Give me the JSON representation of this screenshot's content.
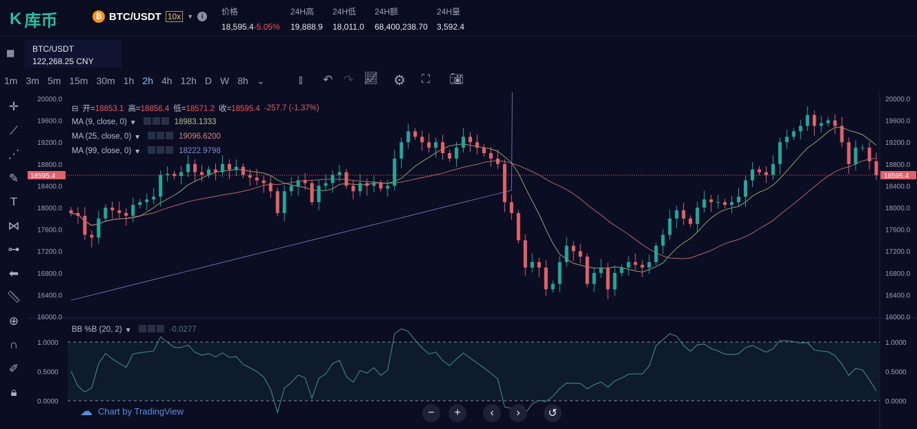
{
  "header": {
    "logo": "库币",
    "pair": "BTC/USDT",
    "leverage": "10x",
    "stats": [
      {
        "label": "价格",
        "value": "18,595.4",
        "change": "-5.05%"
      },
      {
        "label": "24H高",
        "value": "19,888.9"
      },
      {
        "label": "24H低",
        "value": "18,011.0"
      },
      {
        "label": "24H额",
        "value": "68,400,238.70"
      },
      {
        "label": "24H量",
        "value": "3,592.4"
      }
    ]
  },
  "symbol": {
    "name": "BTC/USDT",
    "cny": "122,268.25 CNY"
  },
  "timeframes": [
    "1m",
    "3m",
    "5m",
    "15m",
    "30m",
    "1h",
    "2h",
    "4h",
    "12h",
    "D",
    "W",
    "8h"
  ],
  "active_timeframe": "2h",
  "toolbar_icons": [
    "candles-icon",
    "undo-icon",
    "redo-icon",
    "indicator-icon",
    "settings-icon",
    "fullscreen-icon",
    "camera-icon"
  ],
  "left_tools": [
    "crosshair-icon",
    "trendline-icon",
    "fib-icon",
    "brush-icon",
    "text-icon",
    "pattern-icon",
    "measure-icon",
    "back-arrow-icon",
    "ruler-icon",
    "zoom-in-icon",
    "magnet-icon",
    "lock-draw-icon",
    "lock-icon"
  ],
  "legend": {
    "ohlc": {
      "o_label": "开=",
      "o": "18853.1",
      "h_label": "高=",
      "h": "18856.4",
      "l_label": "低=",
      "l": "18571.2",
      "c_label": "收=",
      "c": "18595.4",
      "chg": "-257.7 (-1.37%)"
    },
    "ma": [
      {
        "label": "MA (9, close, 0)",
        "value": "18983.1333",
        "color": "#b9c48a"
      },
      {
        "label": "MA (25, close, 0)",
        "value": "19096.6200",
        "color": "#d98080"
      },
      {
        "label": "MA (99, close, 0)",
        "value": "18222.9798",
        "color": "#8088d0"
      }
    ],
    "bb": {
      "label": "BB %B (20, 2)",
      "value": "-0.0277"
    }
  },
  "price_label": "18595.4",
  "colors": {
    "up": "#26a69a",
    "down": "#e0636b",
    "bg": "#0b0e23"
  },
  "chart_data": {
    "type": "candlestick",
    "ylim": [
      16000,
      20000
    ],
    "y_ticks": [
      "20000.0",
      "19600.0",
      "19200.0",
      "18800.0",
      "18400.0",
      "18000.0",
      "17600.0",
      "17200.0",
      "16800.0",
      "16400.0",
      "16000.0"
    ],
    "bb_ticks": [
      "1.0000",
      "0.5000",
      "0.0000"
    ],
    "closes": [
      17900,
      17850,
      17500,
      17450,
      17800,
      18000,
      17950,
      17900,
      17850,
      18050,
      18100,
      18150,
      18200,
      18600,
      18620,
      18580,
      18650,
      18800,
      18650,
      18600,
      18700,
      18650,
      18800,
      18700,
      18750,
      18600,
      18550,
      18500,
      18450,
      18300,
      17900,
      18300,
      18400,
      18500,
      18450,
      18100,
      18400,
      18450,
      18600,
      18650,
      18400,
      18300,
      18450,
      18400,
      18450,
      18350,
      18400,
      18900,
      19200,
      19400,
      19300,
      19200,
      19100,
      19200,
      19000,
      18900,
      19100,
      19300,
      19200,
      19100,
      19000,
      18900,
      18800,
      18100,
      17900,
      17400,
      16900,
      17000,
      16900,
      16500,
      16600,
      17000,
      17300,
      17200,
      17100,
      16600,
      16800,
      16900,
      16500,
      16800,
      16900,
      17000,
      16950,
      16900,
      17000,
      17300,
      17500,
      17800,
      17950,
      17800,
      17700,
      18000,
      18150,
      18100,
      18100,
      18050,
      18100,
      18200,
      18500,
      18700,
      18650,
      18600,
      18800,
      19200,
      19300,
      19400,
      19500,
      19700,
      19500,
      19550,
      19600,
      19500,
      19200,
      18800,
      19100,
      19100,
      18850,
      18595.4
    ]
  },
  "footer": {
    "brand": "Chart by TradingView",
    "buttons": [
      "−",
      "+",
      "‹",
      "›",
      "↺"
    ]
  }
}
